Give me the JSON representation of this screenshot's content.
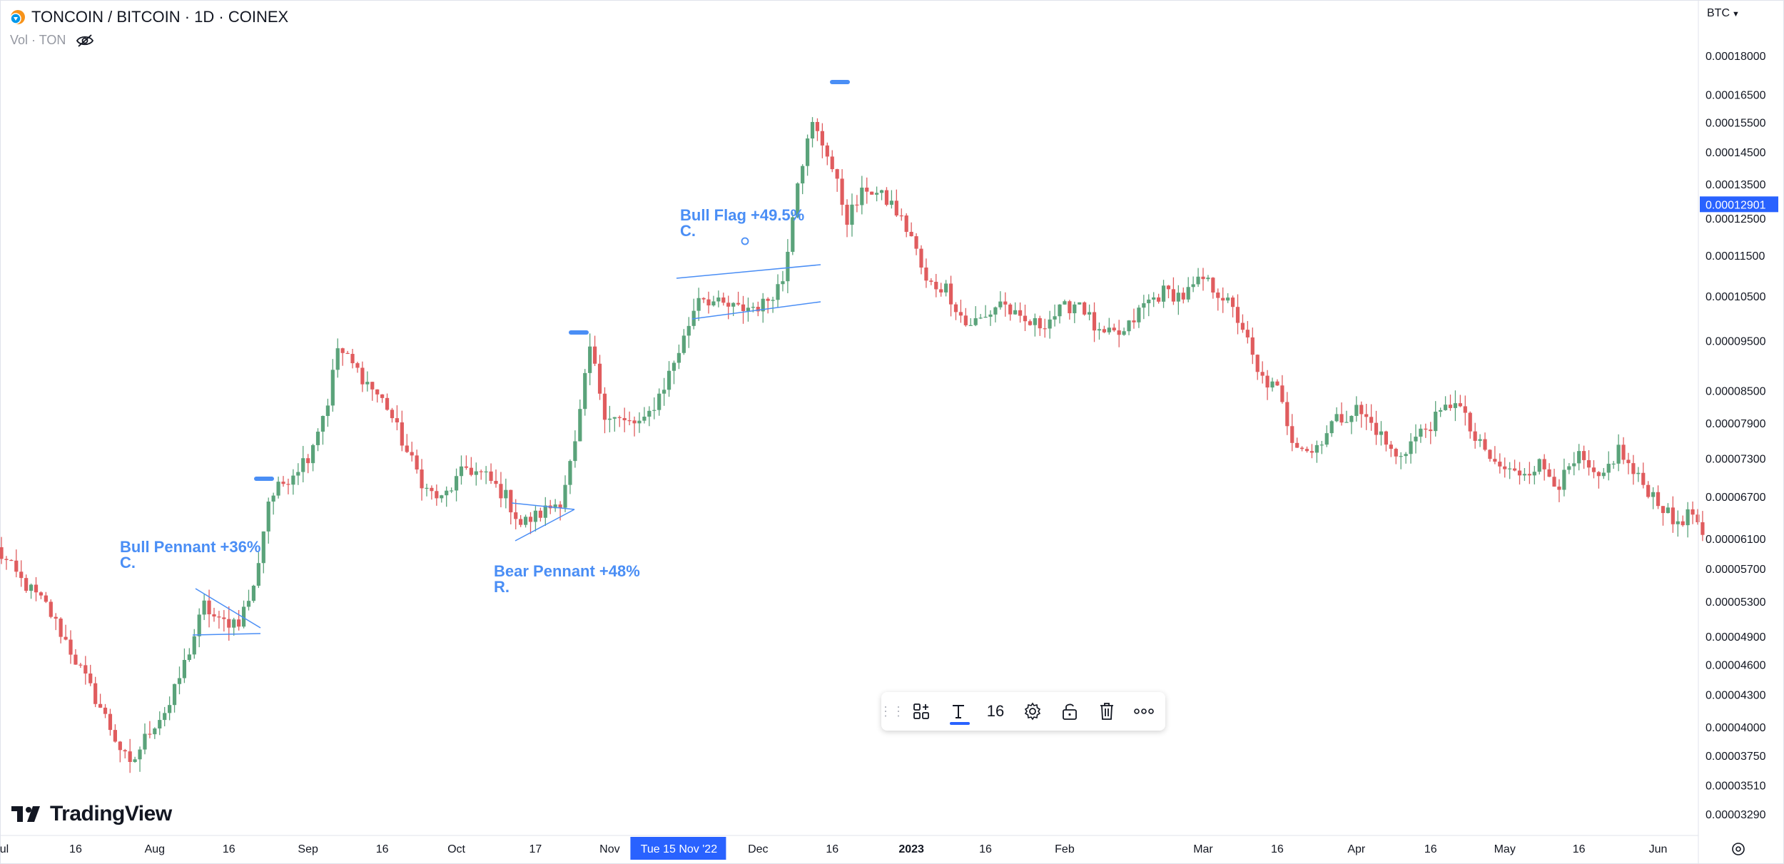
{
  "header": {
    "title": "TONCOIN / BITCOIN · 1D · COINEX",
    "volume_label": "Vol · TON",
    "currency_selector": "BTC"
  },
  "branding": {
    "logo_text": "TradingView"
  },
  "crosshair": {
    "time_label": "Tue 15 Nov '22",
    "price_label": "0.00012901"
  },
  "annotations": [
    {
      "text": "Bull Pennant +36%",
      "note": "C."
    },
    {
      "text": "Bear Pennant +48%",
      "note": "R."
    },
    {
      "text": "Bull Flag +49.5%",
      "note": "C."
    }
  ],
  "toolbar": {
    "font_size": "16",
    "items": [
      "drag-handle",
      "template-icon",
      "text-color-icon",
      "font-size",
      "settings-icon",
      "lock-icon",
      "trash-icon",
      "more-icon"
    ]
  },
  "colors": {
    "up": "#26a69a",
    "down": "#ef5350",
    "up_candle": "#5aa37a",
    "down_candle": "#e05c5e",
    "annotation": "#4a8ef5",
    "crosshair_label": "#2962ff"
  },
  "chart_data": {
    "type": "candlestick",
    "title": "TONCOIN / BITCOIN · 1D · COINEX",
    "y_scale": "log",
    "ylim": [
      3.1e-05,
      0.000187
    ],
    "y_ticks": [
      "0.00018000",
      "0.00016500",
      "0.00015500",
      "0.00014500",
      "0.00013500",
      "0.00012500",
      "0.00011500",
      "0.00010500",
      "0.00009500",
      "0.00008500",
      "0.00007900",
      "0.00007300",
      "0.00006700",
      "0.00006100",
      "0.00005700",
      "0.00005300",
      "0.00004900",
      "0.00004600",
      "0.00004300",
      "0.00004000",
      "0.00003750",
      "0.00003510",
      "0.00003290"
    ],
    "x_start": "2022-07-01",
    "x_ticks": [
      {
        "date": "2022-07-01",
        "label": "Jul"
      },
      {
        "date": "2022-07-16",
        "label": "16"
      },
      {
        "date": "2022-08-01",
        "label": "Aug"
      },
      {
        "date": "2022-08-16",
        "label": "16"
      },
      {
        "date": "2022-09-01",
        "label": "Sep"
      },
      {
        "date": "2022-09-16",
        "label": "16"
      },
      {
        "date": "2022-10-01",
        "label": "Oct"
      },
      {
        "date": "2022-10-17",
        "label": "17"
      },
      {
        "date": "2022-11-01",
        "label": "Nov"
      },
      {
        "date": "2022-12-01",
        "label": "Dec"
      },
      {
        "date": "2022-12-16",
        "label": "16"
      },
      {
        "date": "2023-01-01",
        "label": "2023"
      },
      {
        "date": "2023-01-16",
        "label": "16"
      },
      {
        "date": "2023-02-01",
        "label": "Feb"
      },
      {
        "date": "2023-03-01",
        "label": "Mar"
      },
      {
        "date": "2023-03-16",
        "label": "16"
      },
      {
        "date": "2023-04-01",
        "label": "Apr"
      },
      {
        "date": "2023-04-16",
        "label": "16"
      },
      {
        "date": "2023-05-01",
        "label": "May"
      },
      {
        "date": "2023-05-16",
        "label": "16"
      },
      {
        "date": "2023-06-01",
        "label": "Jun"
      }
    ],
    "close_anchors": [
      [
        "2022-06-30",
        5.95e-05
      ],
      [
        "2022-07-05",
        5.55e-05
      ],
      [
        "2022-07-10",
        5.25e-05
      ],
      [
        "2022-07-14",
        4.85e-05
      ],
      [
        "2022-07-18",
        4.45e-05
      ],
      [
        "2022-07-21",
        4.18e-05
      ],
      [
        "2022-07-24",
        3.9e-05
      ],
      [
        "2022-07-27",
        3.65e-05
      ],
      [
        "2022-07-31",
        3.98e-05
      ],
      [
        "2022-08-04",
        4.2e-05
      ],
      [
        "2022-08-08",
        4.75e-05
      ],
      [
        "2022-08-11",
        5.25e-05
      ],
      [
        "2022-08-14",
        5.05e-05
      ],
      [
        "2022-08-18",
        5.08e-05
      ],
      [
        "2022-08-21",
        5.45e-05
      ],
      [
        "2022-08-24",
        6.65e-05
      ],
      [
        "2022-08-28",
        7e-05
      ],
      [
        "2022-09-01",
        7.35e-05
      ],
      [
        "2022-09-05",
        8.3e-05
      ],
      [
        "2022-09-07",
        9.35e-05
      ],
      [
        "2022-09-10",
        9e-05
      ],
      [
        "2022-09-13",
        8.65e-05
      ],
      [
        "2022-09-17",
        8.2e-05
      ],
      [
        "2022-09-21",
        7.4e-05
      ],
      [
        "2022-09-25",
        6.8e-05
      ],
      [
        "2022-09-28",
        6.65e-05
      ],
      [
        "2022-10-03",
        7.15e-05
      ],
      [
        "2022-10-07",
        7e-05
      ],
      [
        "2022-10-11",
        6.7e-05
      ],
      [
        "2022-10-14",
        6.3e-05
      ],
      [
        "2022-10-18",
        6.45e-05
      ],
      [
        "2022-10-22",
        6.65e-05
      ],
      [
        "2022-10-25",
        7.5e-05
      ],
      [
        "2022-10-28",
        9.35e-05
      ],
      [
        "2022-10-31",
        8.1e-05
      ],
      [
        "2022-11-04",
        7.9e-05
      ],
      [
        "2022-11-08",
        7.9e-05
      ],
      [
        "2022-11-12",
        8.6e-05
      ],
      [
        "2022-11-16",
        9.55e-05
      ],
      [
        "2022-11-19",
        0.0001055
      ],
      [
        "2022-11-23",
        0.000103
      ],
      [
        "2022-11-27",
        0.000102
      ],
      [
        "2022-12-02",
        0.000103
      ],
      [
        "2022-12-06",
        0.000109
      ],
      [
        "2022-12-09",
        0.000137
      ],
      [
        "2022-12-12",
        0.000154
      ],
      [
        "2022-12-15",
        0.000145
      ],
      [
        "2022-12-19",
        0.000125
      ],
      [
        "2022-12-23",
        0.000134
      ],
      [
        "2022-12-28",
        0.000129
      ],
      [
        "2023-01-01",
        0.00012
      ],
      [
        "2023-01-04",
        0.000108
      ],
      [
        "2023-01-08",
        0.000107
      ],
      [
        "2023-01-12",
        9.85e-05
      ],
      [
        "2023-01-16",
        0.0001
      ],
      [
        "2023-01-19",
        0.000104
      ],
      [
        "2023-01-23",
        9.9e-05
      ],
      [
        "2023-01-27",
        9.85e-05
      ],
      [
        "2023-01-31",
        0.0001015
      ],
      [
        "2023-02-04",
        0.000104
      ],
      [
        "2023-02-08",
        9.6e-05
      ],
      [
        "2023-02-13",
        9.65e-05
      ],
      [
        "2023-02-17",
        0.000103
      ],
      [
        "2023-02-21",
        0.000106
      ],
      [
        "2023-02-25",
        0.000105
      ],
      [
        "2023-03-01",
        0.000109
      ],
      [
        "2023-03-05",
        0.000105
      ],
      [
        "2023-03-09",
        9.8e-05
      ],
      [
        "2023-03-12",
        8.8e-05
      ],
      [
        "2023-03-16",
        8.5e-05
      ],
      [
        "2023-03-19",
        7.65e-05
      ],
      [
        "2023-03-23",
        7.4e-05
      ],
      [
        "2023-03-27",
        7.9e-05
      ],
      [
        "2023-04-01",
        8.15e-05
      ],
      [
        "2023-04-05",
        7.8e-05
      ],
      [
        "2023-04-09",
        7.3e-05
      ],
      [
        "2023-04-13",
        7.65e-05
      ],
      [
        "2023-04-18",
        8.05e-05
      ],
      [
        "2023-04-21",
        8.35e-05
      ],
      [
        "2023-04-25",
        7.6e-05
      ],
      [
        "2023-04-29",
        7.2e-05
      ],
      [
        "2023-05-03",
        7.05e-05
      ],
      [
        "2023-05-08",
        7.2e-05
      ],
      [
        "2023-05-12",
        6.9e-05
      ],
      [
        "2023-05-16",
        7.3e-05
      ],
      [
        "2023-05-20",
        6.9e-05
      ],
      [
        "2023-05-24",
        7.45e-05
      ],
      [
        "2023-05-27",
        7.05e-05
      ],
      [
        "2023-06-01",
        6.65e-05
      ],
      [
        "2023-06-04",
        6.32e-05
      ],
      [
        "2023-06-08",
        6.45e-05
      ],
      [
        "2023-06-10",
        6.15e-05
      ]
    ]
  }
}
